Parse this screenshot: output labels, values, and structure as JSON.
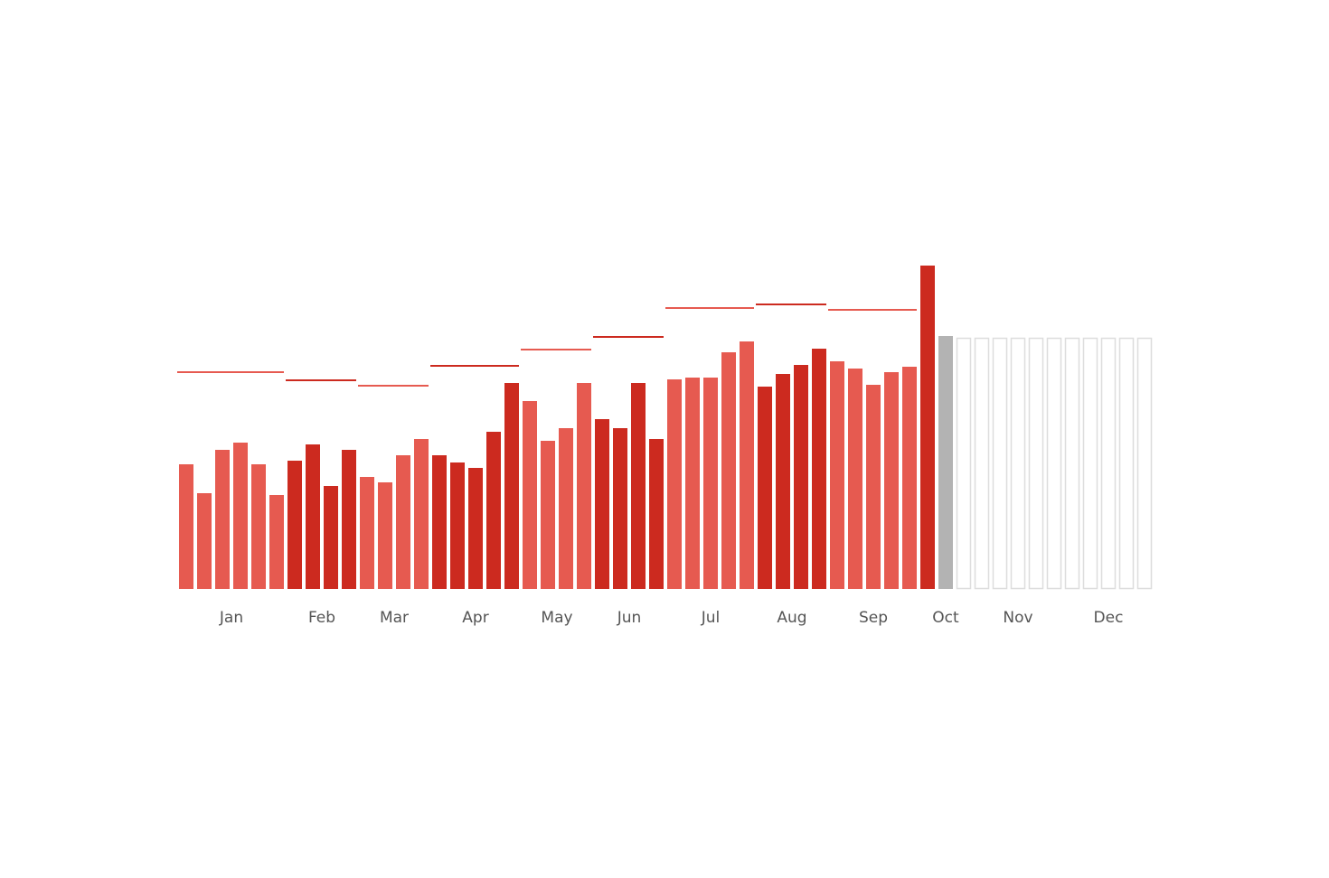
{
  "chart_data": {
    "type": "bar",
    "highlight_color": "#b3b3b3",
    "placeholder": 278,
    "placeholder_color": "#dddddd",
    "months": [
      {
        "name": "Jan",
        "color": "#e65a50",
        "values": [
          138,
          106,
          154,
          162,
          138,
          104
        ],
        "average": 240
      },
      {
        "name": "Feb",
        "color": "#cc2a1f",
        "values": [
          142,
          160,
          114,
          154
        ],
        "average": 231
      },
      {
        "name": "Mar",
        "color": "#e65a50",
        "values": [
          124,
          118,
          148,
          166
        ],
        "average": 225
      },
      {
        "name": "Apr",
        "color": "#cc2a1f",
        "values": [
          148,
          140,
          134,
          174,
          228
        ],
        "average": 247
      },
      {
        "name": "May",
        "color": "#e65a50",
        "values": [
          208,
          164,
          178,
          228
        ],
        "average": 265
      },
      {
        "name": "Jun",
        "color": "#cc2a1f",
        "values": [
          188,
          178,
          228,
          166
        ],
        "average": 279
      },
      {
        "name": "Jul",
        "color": "#e65a50",
        "values": [
          232,
          234,
          234,
          262,
          274
        ],
        "average": 311
      },
      {
        "name": "Aug",
        "color": "#cc2a1f",
        "values": [
          224,
          238,
          248,
          266
        ],
        "average": 315
      },
      {
        "name": "Sep",
        "color": "#e65a50",
        "values": [
          252,
          244,
          226,
          240,
          246
        ],
        "average": 309
      },
      {
        "name": "Oct",
        "color": "#cc2a1f",
        "values": [
          358,
          280,
          null
        ]
      },
      {
        "name": "Nov",
        "color": "#e65a50",
        "values": [
          null,
          null,
          null,
          null,
          null
        ]
      },
      {
        "name": "Dec",
        "color": "#cc2a1f",
        "values": [
          null,
          null,
          null,
          null,
          null
        ]
      }
    ]
  }
}
